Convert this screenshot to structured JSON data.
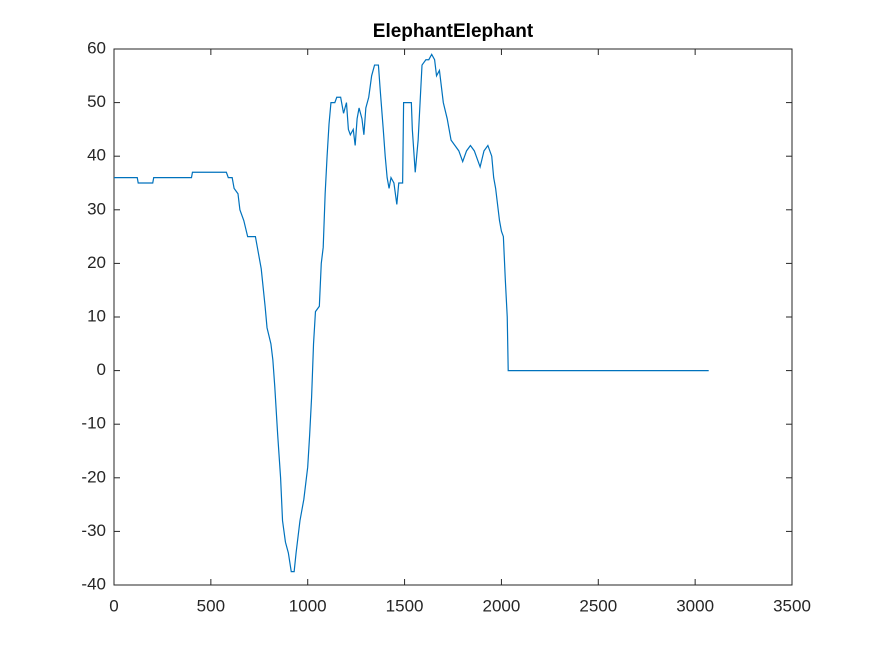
{
  "chart_data": {
    "type": "line",
    "title": "ElephantElephant",
    "x": [
      0,
      120,
      125,
      200,
      205,
      400,
      405,
      580,
      590,
      610,
      620,
      640,
      650,
      670,
      690,
      730,
      740,
      760,
      780,
      790,
      810,
      820,
      830,
      845,
      860,
      870,
      885,
      900,
      915,
      930,
      940,
      960,
      980,
      1000,
      1010,
      1020,
      1030,
      1040,
      1060,
      1070,
      1080,
      1090,
      1100,
      1110,
      1120,
      1140,
      1150,
      1170,
      1185,
      1200,
      1210,
      1220,
      1235,
      1245,
      1255,
      1265,
      1280,
      1290,
      1300,
      1315,
      1330,
      1345,
      1365,
      1375,
      1390,
      1400,
      1410,
      1420,
      1430,
      1445,
      1460,
      1470,
      1490,
      1495,
      1535,
      1540,
      1555,
      1570,
      1580,
      1590,
      1610,
      1625,
      1640,
      1655,
      1665,
      1680,
      1700,
      1720,
      1740,
      1760,
      1780,
      1800,
      1820,
      1840,
      1860,
      1870,
      1890,
      1910,
      1930,
      1950,
      1960,
      1970,
      1990,
      2000,
      2010,
      2020,
      2030,
      2035,
      3070
    ],
    "series": [
      {
        "color": "#0072bd",
        "values": [
          36,
          36,
          35,
          35,
          36,
          36,
          37,
          37,
          36,
          36,
          34,
          33,
          30,
          28,
          25,
          25,
          23,
          19,
          12,
          8,
          5,
          2,
          -3,
          -12,
          -20,
          -28,
          -32,
          -34,
          -37.5,
          -37.5,
          -34,
          -28,
          -24,
          -18,
          -12,
          -5,
          5,
          11,
          12,
          20,
          23,
          33,
          40,
          46,
          50,
          50,
          51,
          51,
          48,
          50,
          45,
          44,
          45,
          42,
          47,
          49,
          47,
          44,
          49,
          51,
          55,
          57,
          57,
          52,
          45,
          40,
          36,
          34,
          36,
          35,
          31,
          35,
          35,
          50,
          50,
          45,
          37,
          43,
          50,
          57,
          58,
          58,
          59,
          58,
          55,
          56,
          50,
          47,
          43,
          42,
          41,
          39,
          41,
          42,
          41,
          40,
          38,
          41,
          42,
          40,
          36,
          34,
          28,
          26,
          25,
          17,
          10,
          0,
          0
        ]
      }
    ],
    "xlim": [
      0,
      3500
    ],
    "xticks": [
      0,
      500,
      1000,
      1500,
      2000,
      2500,
      3000,
      3500
    ],
    "ylim": [
      -40,
      60
    ],
    "yticks": [
      -40,
      -30,
      -20,
      -10,
      0,
      10,
      20,
      30,
      40,
      50,
      60
    ]
  }
}
